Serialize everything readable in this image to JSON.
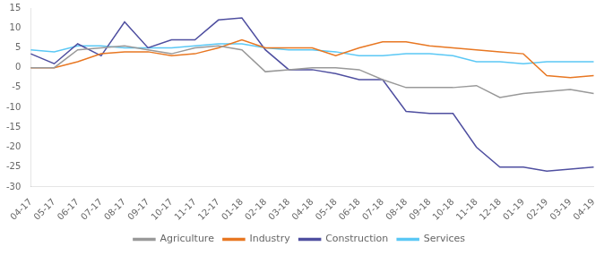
{
  "chart_data": {
    "type": "line",
    "categories": [
      "04-17",
      "05-17",
      "06-17",
      "07-17",
      "08-17",
      "09-17",
      "10-17",
      "11-17",
      "12-17",
      "01-18",
      "02-18",
      "03-18",
      "04-18",
      "05-18",
      "06-18",
      "07-18",
      "08-18",
      "09-18",
      "10-18",
      "11-18",
      "12-18",
      "01-19",
      "02-19",
      "03-19",
      "04-19"
    ],
    "series": [
      {
        "name": "Agriculture",
        "color": "#999999",
        "values": [
          0,
          0,
          4.5,
          5.0,
          5.5,
          4.5,
          3.5,
          5.0,
          5.5,
          4.5,
          -1.0,
          -0.5,
          0.0,
          0.0,
          -0.5,
          -3.0,
          -5.0,
          -5.0,
          -5.0,
          -4.5,
          -7.5,
          -6.5,
          -6.0,
          -5.5,
          -6.5
        ]
      },
      {
        "name": "Industry",
        "color": "#e87722",
        "values": [
          0,
          0,
          1.5,
          3.5,
          4.0,
          4.0,
          3.0,
          3.5,
          5.0,
          7.0,
          5.0,
          5.0,
          5.0,
          3.0,
          5.0,
          6.5,
          6.5,
          5.5,
          5.0,
          4.5,
          4.0,
          3.5,
          -2.0,
          -2.5,
          -2.0
        ]
      },
      {
        "name": "Construction",
        "color": "#4f4fa0",
        "values": [
          3.5,
          1.0,
          6.0,
          3.0,
          11.5,
          5.0,
          7.0,
          7.0,
          12.0,
          12.5,
          4.5,
          -0.5,
          -0.5,
          -1.5,
          -3.0,
          -3.0,
          -11.0,
          -11.5,
          -11.5,
          -20.0,
          -25.0,
          -25.0,
          -26.0,
          -25.5,
          -25.0
        ]
      },
      {
        "name": "Services",
        "color": "#5bc8f5",
        "values": [
          4.5,
          4.0,
          5.5,
          5.5,
          5.0,
          5.0,
          5.0,
          5.5,
          6.0,
          6.0,
          5.0,
          4.5,
          4.5,
          4.0,
          3.0,
          3.0,
          3.5,
          3.5,
          3.0,
          1.5,
          1.5,
          1.0,
          1.5,
          1.5,
          1.5
        ]
      }
    ],
    "ylim": [
      -30,
      15
    ],
    "yticks": [
      -30,
      -25,
      -20,
      -15,
      -10,
      -5,
      0,
      5,
      10,
      15
    ],
    "grid": false,
    "legend": "bottom"
  }
}
